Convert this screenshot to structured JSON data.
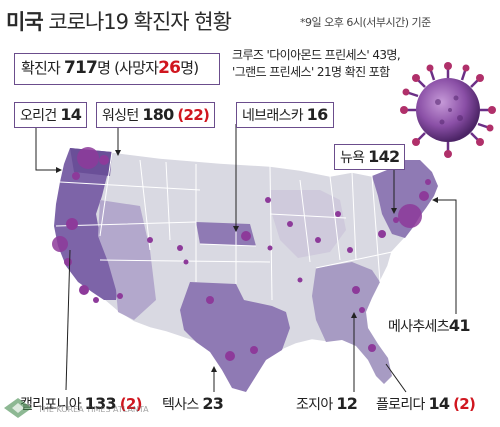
{
  "header": {
    "title_bold": "미국",
    "title_rest": " 코로나19 확진자 현황",
    "basis": "*9일 오후 6시(서부시간) 기준"
  },
  "total": {
    "label": "확진자",
    "count": "717",
    "unit": "명",
    "deaths_prefix": "(사망자",
    "deaths": "26",
    "deaths_suffix": "명)"
  },
  "cruise_note": {
    "line1": "크루즈 '다이아몬드 프린세스' 43명,",
    "line2": "'그랜드 프린세스' 21명 확진 포함"
  },
  "states": [
    {
      "id": "oregon",
      "name": "오리건",
      "count": "14",
      "deaths": ""
    },
    {
      "id": "washington",
      "name": "워싱턴",
      "count": "180",
      "deaths": "(22)"
    },
    {
      "id": "nebraska",
      "name": "네브래스카",
      "count": "16",
      "deaths": ""
    },
    {
      "id": "newyork",
      "name": "뉴욕",
      "count": "142",
      "deaths": ""
    },
    {
      "id": "massachusetts",
      "name": "메사추세츠",
      "count": "41",
      "deaths": ""
    },
    {
      "id": "california",
      "name": "캘리포니아",
      "count": "133",
      "deaths": "(2)"
    },
    {
      "id": "texas",
      "name": "텍사스",
      "count": "23",
      "deaths": ""
    },
    {
      "id": "georgia",
      "name": "조지아",
      "count": "12",
      "deaths": ""
    },
    {
      "id": "florida",
      "name": "플로리다",
      "count": "14",
      "deaths": "(2)"
    }
  ],
  "credit": "THE KOREA TIMES ATLANTA",
  "colors": {
    "accent": "#6b4d8c",
    "red": "#d0161f",
    "map_base": "#d9d9e2",
    "map_mid": "#a79bc3",
    "map_dark": "#7d64a8",
    "dot": "#8d3a9a"
  }
}
